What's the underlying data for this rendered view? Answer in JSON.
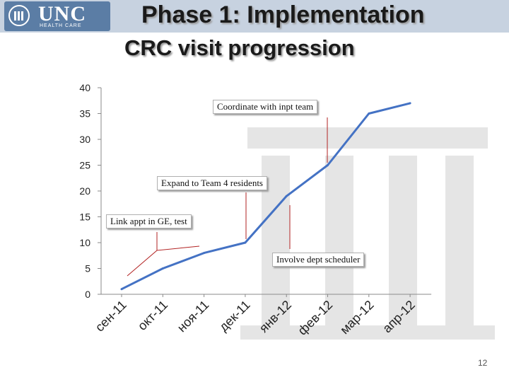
{
  "header": {
    "title": "Phase 1: Implementation",
    "subtitle": "CRC visit progression",
    "logo_word": "UNC",
    "logo_sub": "HEALTH CARE"
  },
  "chart_data": {
    "type": "line",
    "categories": [
      "сен-11",
      "окт-11",
      "ноя-11",
      "дек-11",
      "янв-12",
      "фев-12",
      "мар-12",
      "апр-12"
    ],
    "series": [
      {
        "values": [
          1,
          5,
          8,
          10,
          19,
          25,
          35,
          37
        ]
      }
    ],
    "ylim": [
      0,
      40
    ],
    "yticks": [
      "0",
      "5",
      "10",
      "15",
      "20",
      "25",
      "30",
      "35",
      "40"
    ],
    "annotations": [
      {
        "text": "Coordinate with inpt team"
      },
      {
        "text": "Expand to Team 4 residents"
      },
      {
        "text": "Link appt in GE, test"
      },
      {
        "text": "Involve dept scheduler"
      }
    ],
    "line_color": "#4472c4",
    "grid": false
  },
  "page_number": "12"
}
